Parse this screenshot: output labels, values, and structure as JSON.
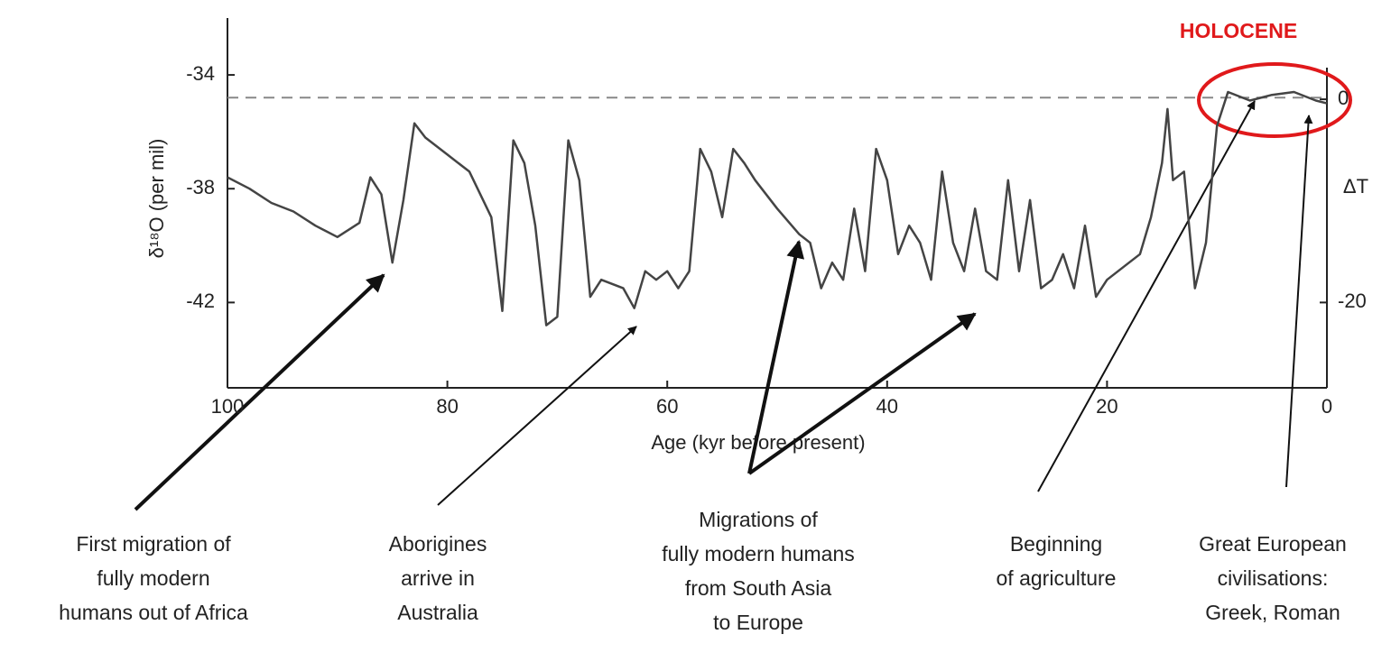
{
  "chart_data": {
    "type": "line",
    "x_label": "Age (kyr before present)",
    "y_label": "δ¹⁸O (per mil)",
    "y2_label": "ΔT",
    "xlim": [
      100,
      0
    ],
    "xticks": [
      100,
      80,
      60,
      40,
      20,
      0
    ],
    "ylim": [
      -45,
      -32
    ],
    "yticks": [
      -34,
      -38,
      -42
    ],
    "y2lim": [
      -28.4,
      8
    ],
    "y2ticks": [
      0,
      -20
    ],
    "reference_line": -34.8,
    "highlight_label": "HOLOCENE",
    "series": [
      {
        "color": "#444444",
        "x": [
          100,
          98,
          96,
          94,
          92,
          90,
          88,
          87,
          86,
          85,
          84,
          83,
          82,
          80,
          78,
          76,
          75,
          74,
          73,
          72,
          71,
          70,
          69,
          68,
          67,
          66,
          64,
          63,
          62,
          61,
          60,
          59,
          58,
          57,
          56,
          55,
          54,
          53,
          52,
          50,
          48,
          47,
          46,
          45,
          44,
          43,
          42,
          41,
          40,
          39,
          38,
          37,
          36,
          35,
          34,
          33,
          32,
          31,
          30,
          29,
          28,
          27,
          26,
          25,
          24,
          23,
          22,
          21,
          20,
          19,
          18,
          17,
          16,
          15,
          14.5,
          14,
          13,
          12,
          11,
          10,
          9,
          7,
          5,
          3,
          1,
          0
        ],
        "values": [
          -37.6,
          -38.0,
          -38.5,
          -38.8,
          -39.3,
          -39.7,
          -39.2,
          -37.6,
          -38.2,
          -40.6,
          -38.4,
          -35.7,
          -36.2,
          -36.8,
          -37.4,
          -39.0,
          -42.3,
          -36.3,
          -37.1,
          -39.3,
          -42.8,
          -42.5,
          -36.3,
          -37.7,
          -41.8,
          -41.2,
          -41.5,
          -42.2,
          -40.9,
          -41.2,
          -40.9,
          -41.5,
          -40.9,
          -36.6,
          -37.4,
          -39.0,
          -36.6,
          -37.1,
          -37.7,
          -38.7,
          -39.6,
          -39.9,
          -41.5,
          -40.6,
          -41.2,
          -38.7,
          -40.9,
          -36.6,
          -37.7,
          -40.3,
          -39.3,
          -39.9,
          -41.2,
          -37.4,
          -39.9,
          -40.9,
          -38.7,
          -40.9,
          -41.2,
          -37.7,
          -40.9,
          -38.4,
          -41.5,
          -41.2,
          -40.3,
          -41.5,
          -39.3,
          -41.8,
          -41.2,
          -40.9,
          -40.6,
          -40.3,
          -39.0,
          -37.1,
          -35.2,
          -37.7,
          -37.4,
          -41.5,
          -39.9,
          -35.8,
          -34.6,
          -34.9,
          -34.7,
          -34.6,
          -34.9,
          -35.0
        ]
      }
    ],
    "annotations": [
      [
        "First migration of",
        "fully modern",
        "humans out of Africa"
      ],
      [
        "Aborigines",
        "arrive in",
        "Australia"
      ],
      [
        "Migrations of",
        "fully modern humans",
        "from South Asia",
        "to Europe"
      ],
      [
        "Beginning",
        "of agriculture"
      ],
      [
        "Great European",
        "civilisations:",
        "Greek, Roman"
      ]
    ]
  }
}
